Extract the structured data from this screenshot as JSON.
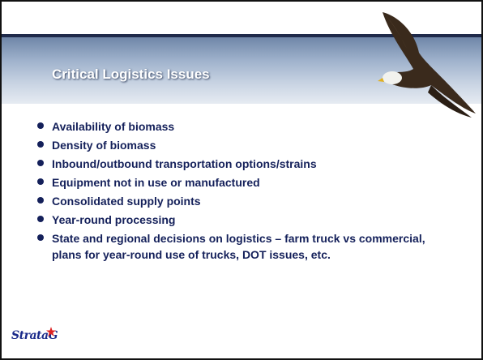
{
  "title": "Critical Logistics Issues",
  "bullets": [
    "Availability of biomass",
    "Density of biomass",
    "Inbound/outbound transportation options/strains",
    "Equipment not in use or manufactured",
    "Consolidated supply points",
    "Year-round processing",
    "State and regional decisions on logistics – farm truck vs commercial, plans for year-round use of trucks, DOT issues, etc."
  ],
  "logo": "StrataG"
}
